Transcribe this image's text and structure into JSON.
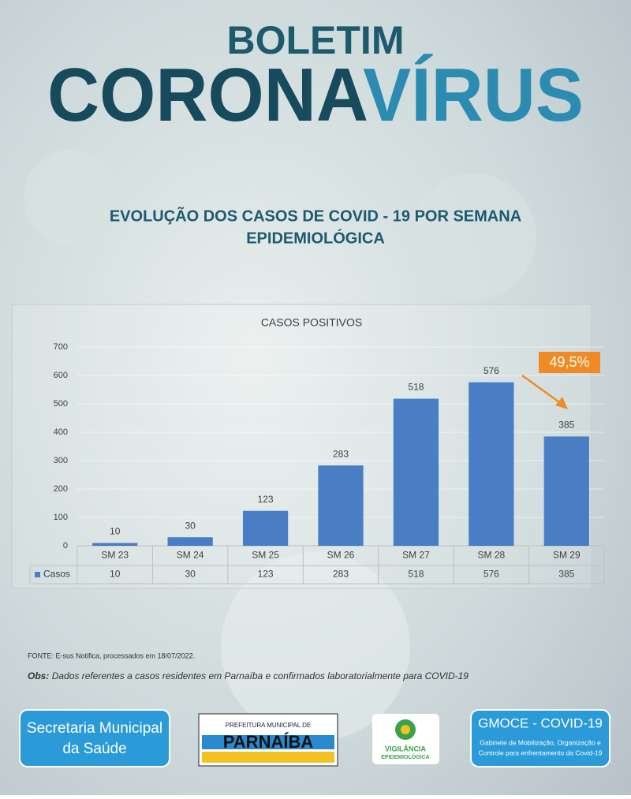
{
  "header": {
    "line1": "BOLETIM",
    "line2a": "CORONA",
    "line2b": "VÍRUS",
    "subtitle": [
      "EVOLUÇÃO DOS CASOS DE COVID - 19 POR SEMANA",
      "EPIDEMIOLÓGICA"
    ]
  },
  "chart_data": {
    "type": "bar",
    "title": "CASOS POSITIVOS",
    "categories": [
      "SM 23",
      "SM 24",
      "SM 25",
      "SM 26",
      "SM 27",
      "SM 28",
      "SM 29"
    ],
    "series": [
      {
        "name": "Casos",
        "color": "#4a7ec4",
        "values": [
          10,
          30,
          123,
          283,
          518,
          576,
          385
        ]
      }
    ],
    "ylim": [
      0,
      700
    ],
    "yticks": [
      0,
      100,
      200,
      300,
      400,
      500,
      600,
      700
    ],
    "grid": true,
    "annotation": "49,5%"
  },
  "footer": {
    "source": "FONTE: E-sus Notifica, processados em 18/07/2022.",
    "obs_label": "Obs:",
    "obs_text": "Dados referentes a casos residentes em Parnaíba e confirmados laboratorialmente para COVID-19",
    "logos": {
      "secretaria": [
        "Secretaria Municipal",
        "da Saúde"
      ],
      "prefeitura": [
        "PREFEITURA MUNICIPAL DE",
        "PARNAÍBA"
      ],
      "vigilancia": [
        "VIGILÂNCIA",
        "EPIDEMIOLÓGICA"
      ],
      "gmoce": [
        "GMOCE - COVID-19",
        "Gabinete de Mobilização, Organização e",
        "Controle para enfrentamento da Covid-19"
      ]
    }
  }
}
